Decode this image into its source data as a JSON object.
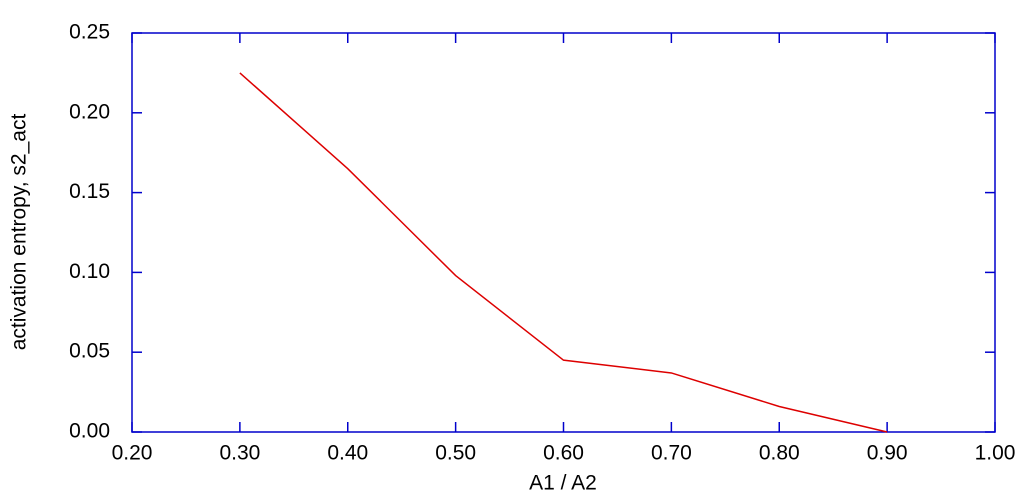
{
  "chart_data": {
    "type": "line",
    "x_label": "A1 / A2",
    "y_label": "activation entropy, s2_act",
    "x": [
      0.3,
      0.4,
      0.5,
      0.6,
      0.7,
      0.8,
      0.9
    ],
    "series": [
      {
        "color": "#dd0000",
        "values": [
          0.225,
          0.165,
          0.098,
          0.045,
          0.037,
          0.016,
          0.0
        ]
      }
    ],
    "xlim": [
      0.2,
      1.0
    ],
    "xticks": [
      {
        "value": 0.2,
        "label": "0.20"
      },
      {
        "value": 0.3,
        "label": "0.30"
      },
      {
        "value": 0.4,
        "label": "0.40"
      },
      {
        "value": 0.5,
        "label": "0.50"
      },
      {
        "value": 0.6,
        "label": "0.60"
      },
      {
        "value": 0.7,
        "label": "0.70"
      },
      {
        "value": 0.8,
        "label": "0.80"
      },
      {
        "value": 0.9,
        "label": "0.90"
      },
      {
        "value": 1.0,
        "label": "1.00"
      }
    ],
    "ylim": [
      0,
      0.25
    ],
    "yticks": [
      {
        "value": 0,
        "label": "0.00"
      },
      0.05,
      {
        "value": 0.1,
        "label": "0.10"
      },
      0.15,
      {
        "value": 0.2,
        "label": "0.20"
      },
      0.25
    ],
    "axis_color": "#0000cc",
    "grid": false
  }
}
